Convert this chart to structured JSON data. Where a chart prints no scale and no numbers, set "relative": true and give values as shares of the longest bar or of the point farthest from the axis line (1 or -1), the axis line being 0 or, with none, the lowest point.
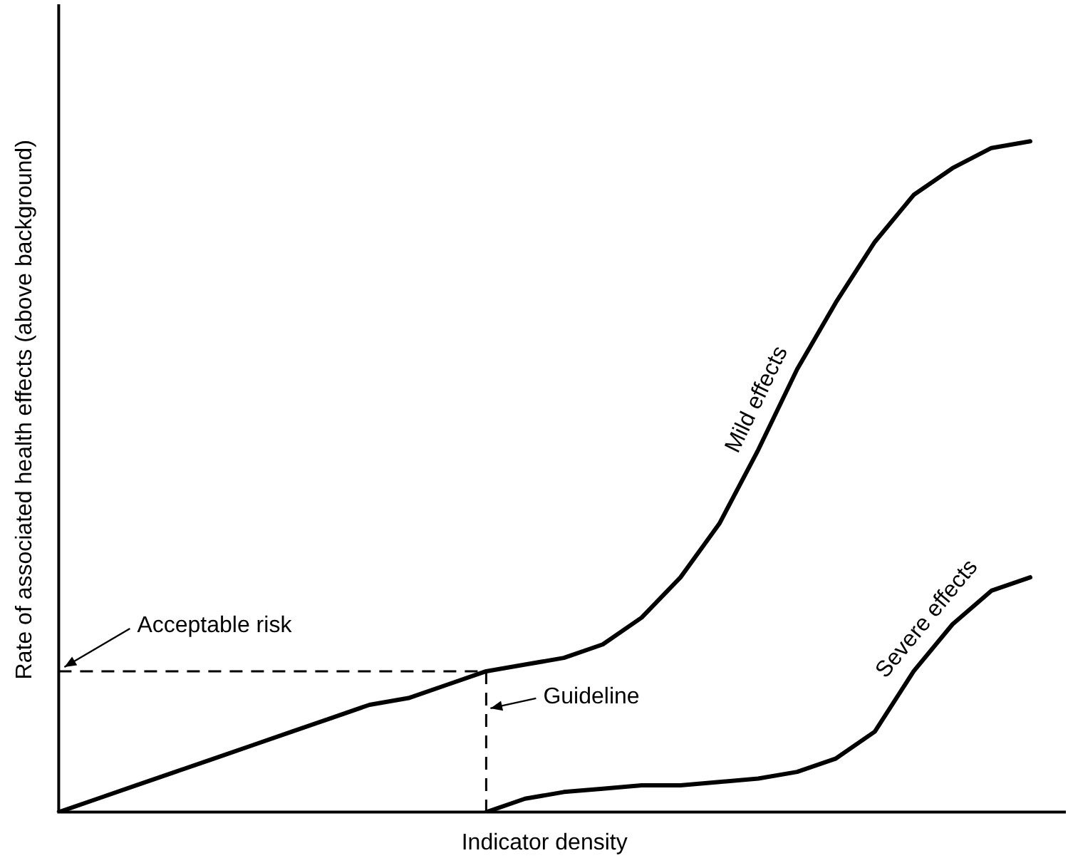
{
  "chart_data": {
    "type": "line",
    "relative": true,
    "xlabel": "Indicator density",
    "ylabel": "Rate of associated health effects (above background)",
    "categories": [
      null,
      null,
      null,
      null,
      null,
      null,
      null,
      null,
      null,
      null,
      null,
      null,
      null,
      null,
      null,
      null,
      null,
      null,
      null,
      null,
      null,
      null,
      null,
      null,
      null,
      null
    ],
    "series": [
      {
        "name": "Mild effects",
        "color": "#000000",
        "values": [
          0,
          0.02,
          0.04,
          0.06,
          0.08,
          0.1,
          0.12,
          0.14,
          0.16,
          0.17,
          0.19,
          0.21,
          0.22,
          0.23,
          0.25,
          0.29,
          0.35,
          0.43,
          0.54,
          0.66,
          0.76,
          0.85,
          0.92,
          0.96,
          0.99,
          1
        ]
      },
      {
        "name": "Severe effects",
        "color": "#000000",
        "values": [
          null,
          null,
          null,
          null,
          null,
          null,
          null,
          null,
          null,
          null,
          null,
          0,
          0.02,
          0.03,
          0.035,
          0.04,
          0.04,
          0.045,
          0.05,
          0.06,
          0.08,
          0.12,
          0.21,
          0.28,
          0.33,
          0.35
        ]
      }
    ],
    "ref_lines": [
      {
        "axis": "y",
        "value": 0.21,
        "label": "Acceptable risk",
        "line_style": "dashed"
      }
    ],
    "annotations": [
      "Guideline"
    ],
    "legend": false,
    "grid": false,
    "marker": "none",
    "line_style": "solid"
  }
}
